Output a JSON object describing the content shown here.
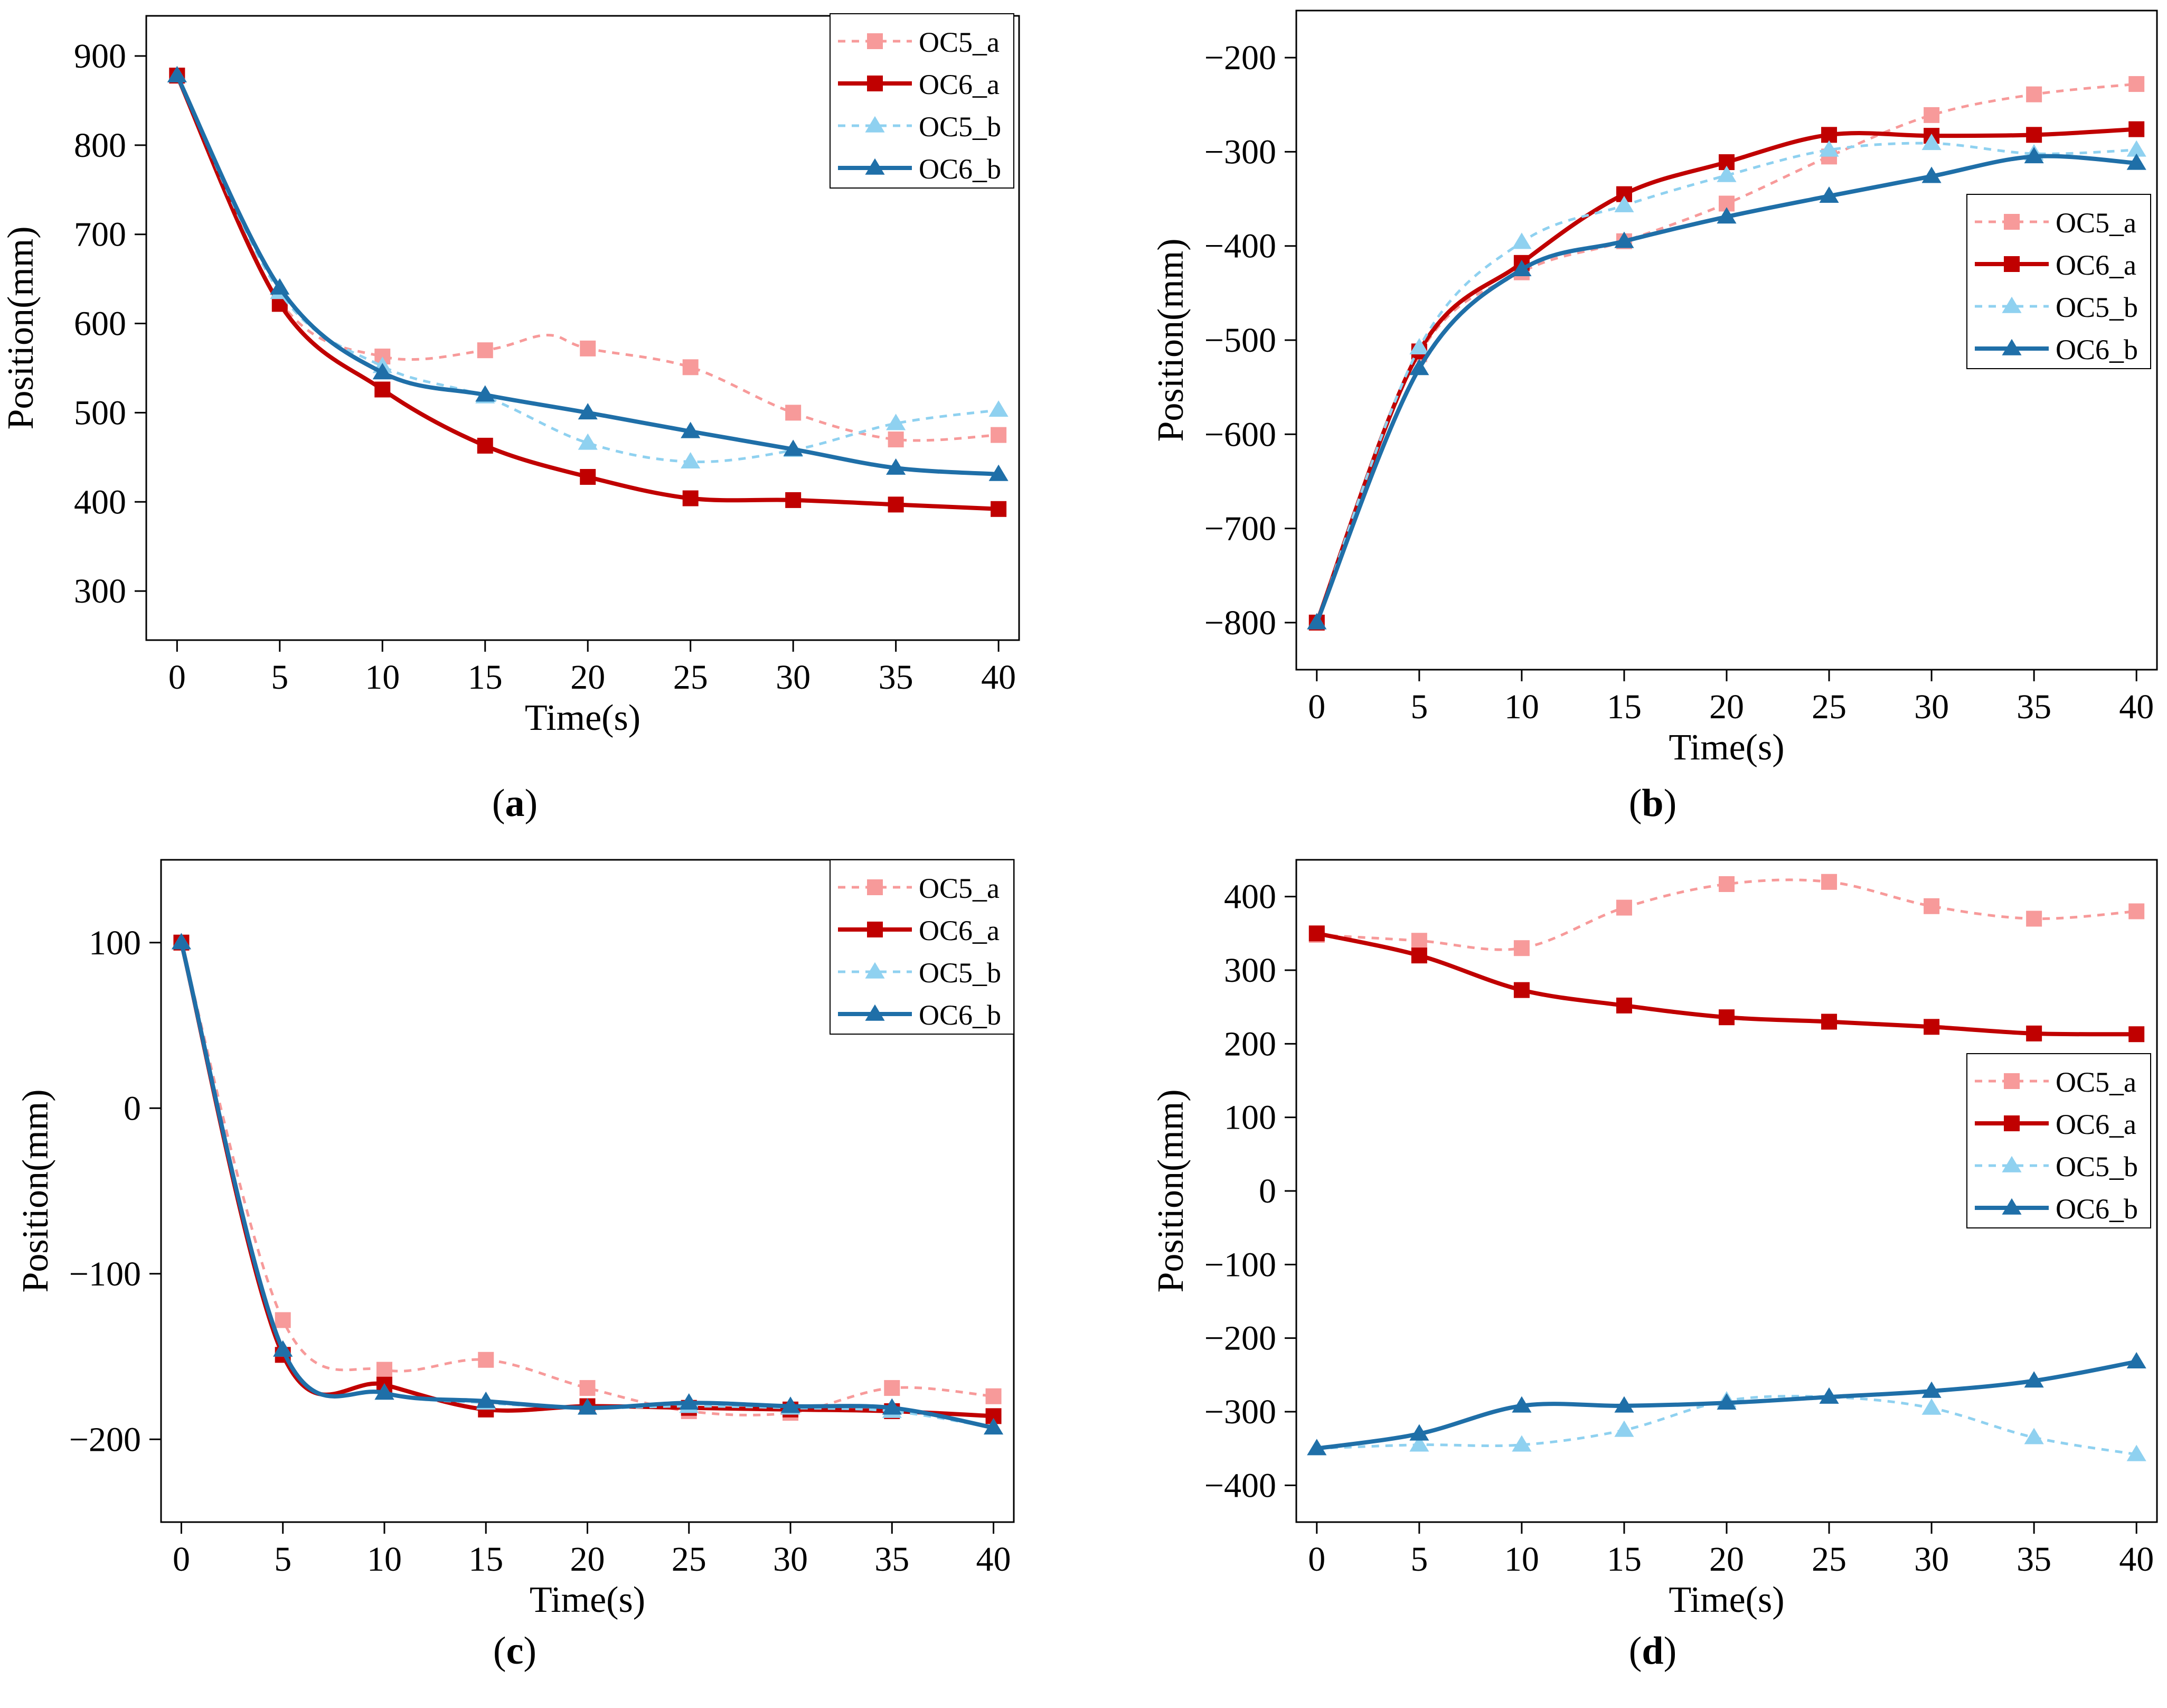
{
  "colors": {
    "OC5_a": "#f79a9a",
    "OC6_a": "#c00000",
    "OC5_b": "#8fd1f0",
    "OC6_b": "#1f6fa8"
  },
  "chart_data": [
    {
      "type": "line",
      "caption": "a",
      "xlabel": "Time(s)",
      "ylabel": "Position(mm)",
      "xlim": [
        -1.5,
        41
      ],
      "ylim": [
        245,
        945
      ],
      "xticks": [
        0,
        5,
        10,
        15,
        20,
        25,
        30,
        35,
        40
      ],
      "yticks": [
        300,
        400,
        500,
        600,
        700,
        800,
        900
      ],
      "legend": "top-right",
      "series": [
        {
          "name": "OC5_a",
          "marker": "square",
          "dash": true,
          "x": [
            0,
            5,
            10,
            15,
            18,
            20,
            25,
            30,
            35,
            40
          ],
          "y": [
            878,
            625,
            563,
            570,
            587,
            572,
            551,
            500,
            470,
            475
          ]
        },
        {
          "name": "OC6_a",
          "marker": "square",
          "dash": false,
          "x": [
            0,
            5,
            10,
            15,
            20,
            25,
            30,
            35,
            40
          ],
          "y": [
            878,
            622,
            526,
            463,
            428,
            404,
            402,
            397,
            392
          ]
        },
        {
          "name": "OC5_b",
          "marker": "triangle",
          "dash": true,
          "x": [
            0,
            5,
            10,
            15,
            20,
            25,
            30,
            35,
            40
          ],
          "y": [
            878,
            635,
            552,
            518,
            466,
            445,
            458,
            488,
            503
          ]
        },
        {
          "name": "OC6_b",
          "marker": "triangle",
          "dash": false,
          "x": [
            0,
            5,
            10,
            15,
            20,
            25,
            30,
            35,
            40
          ],
          "y": [
            878,
            640,
            545,
            520,
            500,
            479,
            459,
            438,
            431
          ]
        }
      ]
    },
    {
      "type": "line",
      "caption": "b",
      "xlabel": "Time(s)",
      "ylabel": "Position(mm)",
      "xlim": [
        -1,
        41
      ],
      "ylim": [
        -850,
        -150
      ],
      "xticks": [
        0,
        5,
        10,
        15,
        20,
        25,
        30,
        35,
        40
      ],
      "yticks": [
        -800,
        -700,
        -600,
        -500,
        -400,
        -300,
        -200
      ],
      "legend": "middle-right",
      "series": [
        {
          "name": "OC5_a",
          "marker": "square",
          "dash": true,
          "x": [
            0,
            5,
            10,
            15,
            20,
            25,
            30,
            35,
            40
          ],
          "y": [
            -800,
            -515,
            -428,
            -395,
            -355,
            -305,
            -261,
            -239,
            -228
          ]
        },
        {
          "name": "OC6_a",
          "marker": "square",
          "dash": false,
          "x": [
            0,
            5,
            10,
            15,
            20,
            25,
            30,
            35,
            40
          ],
          "y": [
            -800,
            -512,
            -418,
            -345,
            -311,
            -282,
            -283,
            -282,
            -276
          ]
        },
        {
          "name": "OC5_b",
          "marker": "triangle",
          "dash": true,
          "x": [
            0,
            5,
            10,
            15,
            20,
            25,
            30,
            35,
            40
          ],
          "y": [
            -800,
            -508,
            -396,
            -357,
            -325,
            -298,
            -291,
            -302,
            -298
          ]
        },
        {
          "name": "OC6_b",
          "marker": "triangle",
          "dash": false,
          "x": [
            0,
            5,
            10,
            15,
            20,
            25,
            30,
            35,
            40
          ],
          "y": [
            -800,
            -530,
            -425,
            -395,
            -369,
            -347,
            -326,
            -305,
            -312
          ]
        }
      ]
    },
    {
      "type": "line",
      "caption": "c",
      "xlabel": "Time(s)",
      "ylabel": "Position(mm)",
      "xlim": [
        -1,
        41
      ],
      "ylim": [
        -250,
        150
      ],
      "xticks": [
        0,
        5,
        10,
        15,
        20,
        25,
        30,
        35,
        40
      ],
      "yticks": [
        -200,
        -100,
        0,
        100
      ],
      "legend": "top-right",
      "series": [
        {
          "name": "OC5_a",
          "marker": "square",
          "dash": true,
          "x": [
            0,
            5,
            10,
            15,
            20,
            25,
            30,
            35,
            40
          ],
          "y": [
            100,
            -128,
            -158,
            -152,
            -169,
            -183,
            -184,
            -169,
            -174
          ]
        },
        {
          "name": "OC6_a",
          "marker": "square",
          "dash": false,
          "x": [
            0,
            5,
            10,
            15,
            20,
            25,
            30,
            35,
            40
          ],
          "y": [
            100,
            -149,
            -167,
            -182,
            -180,
            -181,
            -182,
            -183,
            -186
          ]
        },
        {
          "name": "OC5_b",
          "marker": "triangle",
          "dash": true,
          "x": [
            0,
            5,
            10,
            15,
            20,
            25,
            30,
            35,
            40
          ],
          "y": [
            100,
            -146,
            -172,
            -178,
            -181,
            -180,
            -181,
            -183,
            -193
          ]
        },
        {
          "name": "OC6_b",
          "marker": "triangle",
          "dash": false,
          "x": [
            0,
            5,
            10,
            15,
            20,
            25,
            30,
            35,
            40
          ],
          "y": [
            100,
            -146,
            -172,
            -177,
            -181,
            -178,
            -180,
            -181,
            -193
          ]
        }
      ]
    },
    {
      "type": "line",
      "caption": "d",
      "xlabel": "Time(s)",
      "ylabel": "Position(mm)",
      "xlim": [
        -1,
        41
      ],
      "ylim": [
        -450,
        450
      ],
      "xticks": [
        0,
        5,
        10,
        15,
        20,
        25,
        30,
        35,
        40
      ],
      "yticks": [
        -400,
        -300,
        -200,
        -100,
        0,
        100,
        200,
        300,
        400
      ],
      "legend": "middle-right",
      "series": [
        {
          "name": "OC5_a",
          "marker": "square",
          "dash": true,
          "x": [
            0,
            5,
            10,
            15,
            20,
            25,
            30,
            35,
            40
          ],
          "y": [
            348,
            340,
            330,
            385,
            417,
            420,
            387,
            370,
            380
          ]
        },
        {
          "name": "OC6_a",
          "marker": "square",
          "dash": false,
          "x": [
            0,
            5,
            10,
            15,
            20,
            25,
            30,
            35,
            40
          ],
          "y": [
            350,
            320,
            273,
            252,
            236,
            230,
            223,
            214,
            213
          ]
        },
        {
          "name": "OC5_b",
          "marker": "triangle",
          "dash": true,
          "x": [
            0,
            5,
            10,
            15,
            20,
            25,
            30,
            35,
            40
          ],
          "y": [
            -350,
            -345,
            -345,
            -325,
            -285,
            -280,
            -295,
            -335,
            -358
          ]
        },
        {
          "name": "OC6_b",
          "marker": "triangle",
          "dash": false,
          "x": [
            0,
            5,
            10,
            15,
            20,
            25,
            30,
            35,
            40
          ],
          "y": [
            -350,
            -330,
            -292,
            -292,
            -288,
            -280,
            -272,
            -258,
            -232
          ]
        }
      ]
    }
  ]
}
